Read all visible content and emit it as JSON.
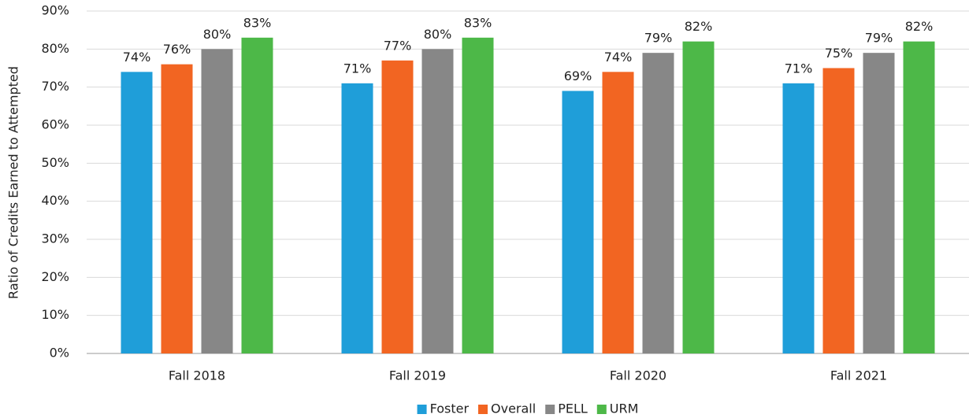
{
  "chart_data": {
    "type": "bar",
    "y_label": "Ratio of Credits Earned to Attempted",
    "categories": [
      "Fall 2018",
      "Fall 2019",
      "Fall 2020",
      "Fall 2021"
    ],
    "series": [
      {
        "name": "Foster",
        "color": "#1f9ed9",
        "values": [
          74,
          71,
          69,
          71
        ],
        "value_labels": [
          "74%",
          "71%",
          "69%",
          "71%"
        ]
      },
      {
        "name": "Overall",
        "color": "#f26522",
        "values": [
          76,
          77,
          74,
          75
        ],
        "value_labels": [
          "76%",
          "77%",
          "74%",
          "75%"
        ]
      },
      {
        "name": "PELL",
        "color": "#878787",
        "values": [
          80,
          80,
          79,
          79
        ],
        "value_labels": [
          "80%",
          "80%",
          "79%",
          "79%"
        ]
      },
      {
        "name": "URM",
        "color": "#4db848",
        "values": [
          83,
          83,
          82,
          82
        ],
        "value_labels": [
          "83%",
          "83%",
          "82%",
          "82%"
        ]
      }
    ],
    "ylim": [
      0,
      90
    ],
    "yticks": [
      {
        "value": 0,
        "label": "0%"
      },
      {
        "value": 10,
        "label": "10%"
      },
      {
        "value": 20,
        "label": "20%"
      },
      {
        "value": 30,
        "label": "30%"
      },
      {
        "value": 40,
        "label": "40%"
      },
      {
        "value": 50,
        "label": "50%"
      },
      {
        "value": 60,
        "label": "60%"
      },
      {
        "value": 70,
        "label": "70%"
      },
      {
        "value": 80,
        "label": "80%"
      },
      {
        "value": 90,
        "label": "90%"
      }
    ],
    "grid": true,
    "legend": "bottom"
  }
}
